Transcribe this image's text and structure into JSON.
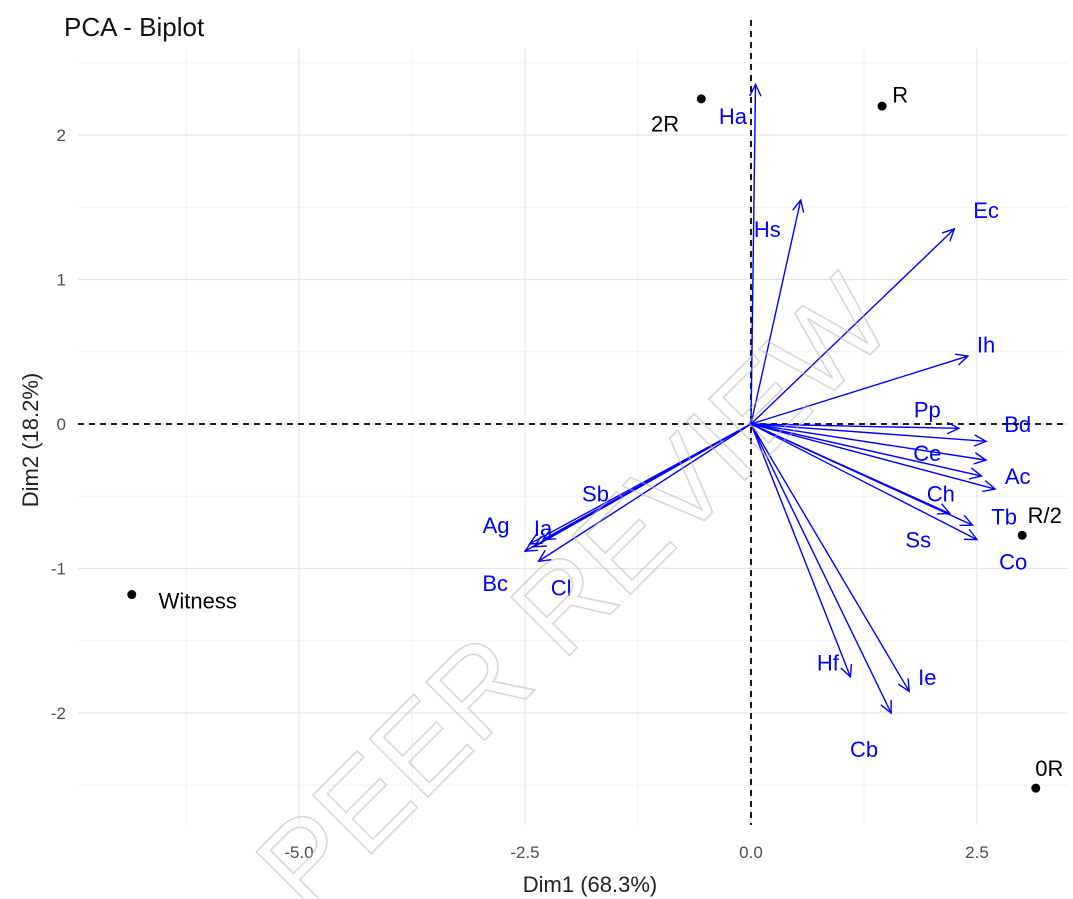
{
  "chart_data": {
    "type": "scatter",
    "title": "PCA - Biplot",
    "xlabel": "Dim1 (68.3%)",
    "ylabel": "Dim2 (18.2%)",
    "xlim": [
      -7.4,
      3.55
    ],
    "ylim": [
      -2.75,
      2.6
    ],
    "x_ticks": [
      -5.0,
      -2.5,
      0.0,
      2.5
    ],
    "x_tick_labels": [
      "-5.0",
      "-2.5",
      "0.0",
      "2.5"
    ],
    "y_ticks": [
      -2,
      -1,
      0,
      1,
      2
    ],
    "y_tick_labels": [
      "-2",
      "-1",
      "0",
      "1",
      "2"
    ],
    "grid": true,
    "reference_lines": {
      "x": 0,
      "y": 0,
      "style": "dashed"
    },
    "variable_color": "#0000ff",
    "individual_color": "#000000",
    "variables": [
      {
        "name": "Ha",
        "x": 0.05,
        "y": 2.35,
        "lx": -0.2,
        "ly": 2.13
      },
      {
        "name": "Hs",
        "x": 0.55,
        "y": 1.55,
        "lx": 0.18,
        "ly": 1.35
      },
      {
        "name": "Ec",
        "x": 2.25,
        "y": 1.35,
        "lx": 2.6,
        "ly": 1.48
      },
      {
        "name": "Ih",
        "x": 2.4,
        "y": 0.47,
        "lx": 2.6,
        "ly": 0.55
      },
      {
        "name": "Pp",
        "x": 2.3,
        "y": -0.03,
        "lx": 1.95,
        "ly": 0.1
      },
      {
        "name": "Bd",
        "x": 2.6,
        "y": -0.12,
        "lx": 2.95,
        "ly": 0.0
      },
      {
        "name": "Ce",
        "x": 2.6,
        "y": -0.25,
        "lx": 1.95,
        "ly": -0.2
      },
      {
        "name": "Ac",
        "x": 2.55,
        "y": -0.36,
        "lx": 2.95,
        "ly": -0.36
      },
      {
        "name": "Ch",
        "x": 2.2,
        "y": -0.62,
        "lx": 2.1,
        "ly": -0.48
      },
      {
        "name": "Tb",
        "x": 2.45,
        "y": -0.7,
        "lx": 2.8,
        "ly": -0.64
      },
      {
        "name": "Ss",
        "x": 2.5,
        "y": -0.8,
        "lx": 1.85,
        "ly": -0.8
      },
      {
        "name": "Co",
        "x": 2.7,
        "y": -0.45,
        "lx": 2.9,
        "ly": -0.95
      },
      {
        "name": "Ie",
        "x": 1.75,
        "y": -1.85,
        "lx": 1.95,
        "ly": -1.75
      },
      {
        "name": "Hf",
        "x": 1.1,
        "y": -1.75,
        "lx": 0.85,
        "ly": -1.65
      },
      {
        "name": "Cb",
        "x": 1.55,
        "y": -2.0,
        "lx": 1.25,
        "ly": -2.25
      },
      {
        "name": "Sb",
        "x": -2.3,
        "y": -0.8,
        "lx": -1.72,
        "ly": -0.48
      },
      {
        "name": "Ia",
        "x": -2.4,
        "y": -0.85,
        "lx": -2.3,
        "ly": -0.72
      },
      {
        "name": "Ag",
        "x": -2.45,
        "y": -0.83,
        "lx": -2.82,
        "ly": -0.7
      },
      {
        "name": "Cl",
        "x": -2.35,
        "y": -0.95,
        "lx": -2.1,
        "ly": -1.13
      },
      {
        "name": "Bc",
        "x": -2.5,
        "y": -0.88,
        "lx": -2.83,
        "ly": -1.1
      }
    ],
    "individuals": [
      {
        "name": "2R",
        "x": -0.55,
        "y": 2.25,
        "lx": -0.95,
        "ly": 2.08
      },
      {
        "name": "R",
        "x": 1.45,
        "y": 2.2,
        "lx": 1.65,
        "ly": 2.28
      },
      {
        "name": "R/2",
        "x": 3.0,
        "y": -0.77,
        "lx": 3.25,
        "ly": -0.63
      },
      {
        "name": "0R",
        "x": 3.15,
        "y": -2.52,
        "lx": 3.3,
        "ly": -2.38
      },
      {
        "name": "Witness",
        "x": -6.85,
        "y": -1.18,
        "lx": -6.12,
        "ly": -1.22
      }
    ]
  },
  "watermark": "PEER REVIEW"
}
